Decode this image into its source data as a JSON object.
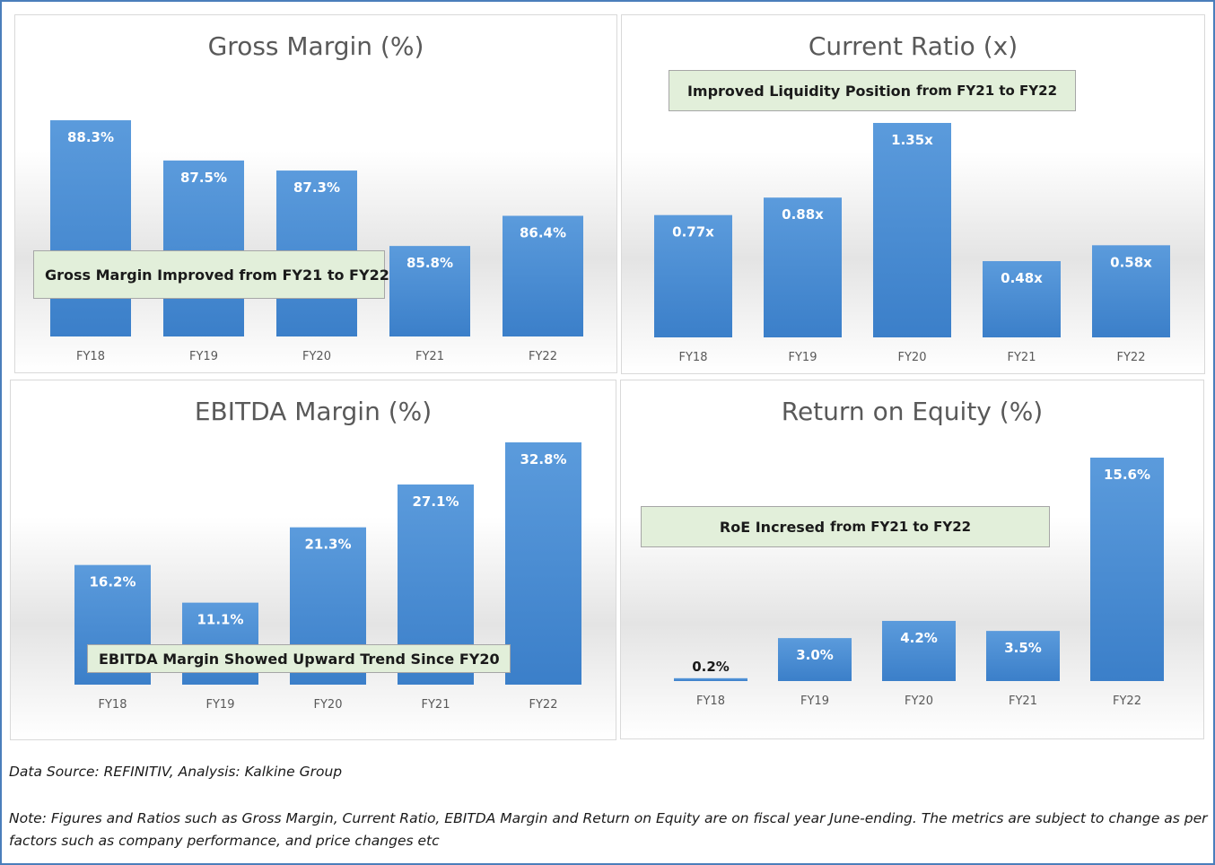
{
  "chart_data": [
    {
      "type": "bar",
      "title": "Gross Margin (%)",
      "categories": [
        "FY18",
        "FY19",
        "FY20",
        "FY21",
        "FY22"
      ],
      "values": [
        88.3,
        87.5,
        87.3,
        85.8,
        86.4
      ],
      "data_labels": [
        "88.3%",
        "87.5%",
        "87.3%",
        "85.8%",
        "86.4%"
      ],
      "ylim": [
        84.0,
        88.8
      ],
      "annotation": {
        "bold": "Gross Margin Improved from FY21 to FY22",
        "light": ""
      },
      "bar_color": "#4a8fd6",
      "grid": false
    },
    {
      "type": "bar",
      "title": "Current Ratio (x)",
      "categories": [
        "FY18",
        "FY19",
        "FY20",
        "FY21",
        "FY22"
      ],
      "values": [
        0.77,
        0.88,
        1.35,
        0.48,
        0.58
      ],
      "data_labels": [
        "0.77x",
        "0.88x",
        "1.35x",
        "0.48x",
        "0.58x"
      ],
      "ylim": [
        0,
        1.35
      ],
      "annotation": {
        "bold": "Improved Liquidity Position",
        "light": "from FY21 to FY22"
      },
      "bar_color": "#4a8fd6",
      "grid": false
    },
    {
      "type": "bar",
      "title": "EBITDA Margin (%)",
      "categories": [
        "FY18",
        "FY19",
        "FY20",
        "FY21",
        "FY22"
      ],
      "values": [
        16.2,
        11.1,
        21.3,
        27.1,
        32.8
      ],
      "data_labels": [
        "16.2%",
        "11.1%",
        "21.3%",
        "27.1%",
        "32.8%"
      ],
      "ylim": [
        0,
        32.8
      ],
      "annotation": {
        "bold": "EBITDA Margin Showed Upward Trend Since FY20",
        "light": ""
      },
      "bar_color": "#4a8fd6",
      "grid": false
    },
    {
      "type": "bar",
      "title": "Return on Equity (%)",
      "categories": [
        "FY18",
        "FY19",
        "FY20",
        "FY21",
        "FY22"
      ],
      "values": [
        0.2,
        3.0,
        4.2,
        3.5,
        15.6
      ],
      "data_labels": [
        "0.2%",
        "3.0%",
        "4.2%",
        "3.5%",
        "15.6%"
      ],
      "ylim": [
        0,
        15.6
      ],
      "annotation": {
        "bold": "RoE Incresed",
        "light": "from FY21 to FY22"
      },
      "bar_color": "#4a8fd6",
      "grid": false
    }
  ],
  "footer": {
    "source": "Data Source: REFINITIV, Analysis: Kalkine Group",
    "note_line1": "Note: Figures and Ratios such as Gross Margin, Current Ratio, EBITDA Margin and Return on Equity are on fiscal year June-ending. The metrics are subject to change as per",
    "note_line2": "factors such as company performance, and price changes etc"
  }
}
